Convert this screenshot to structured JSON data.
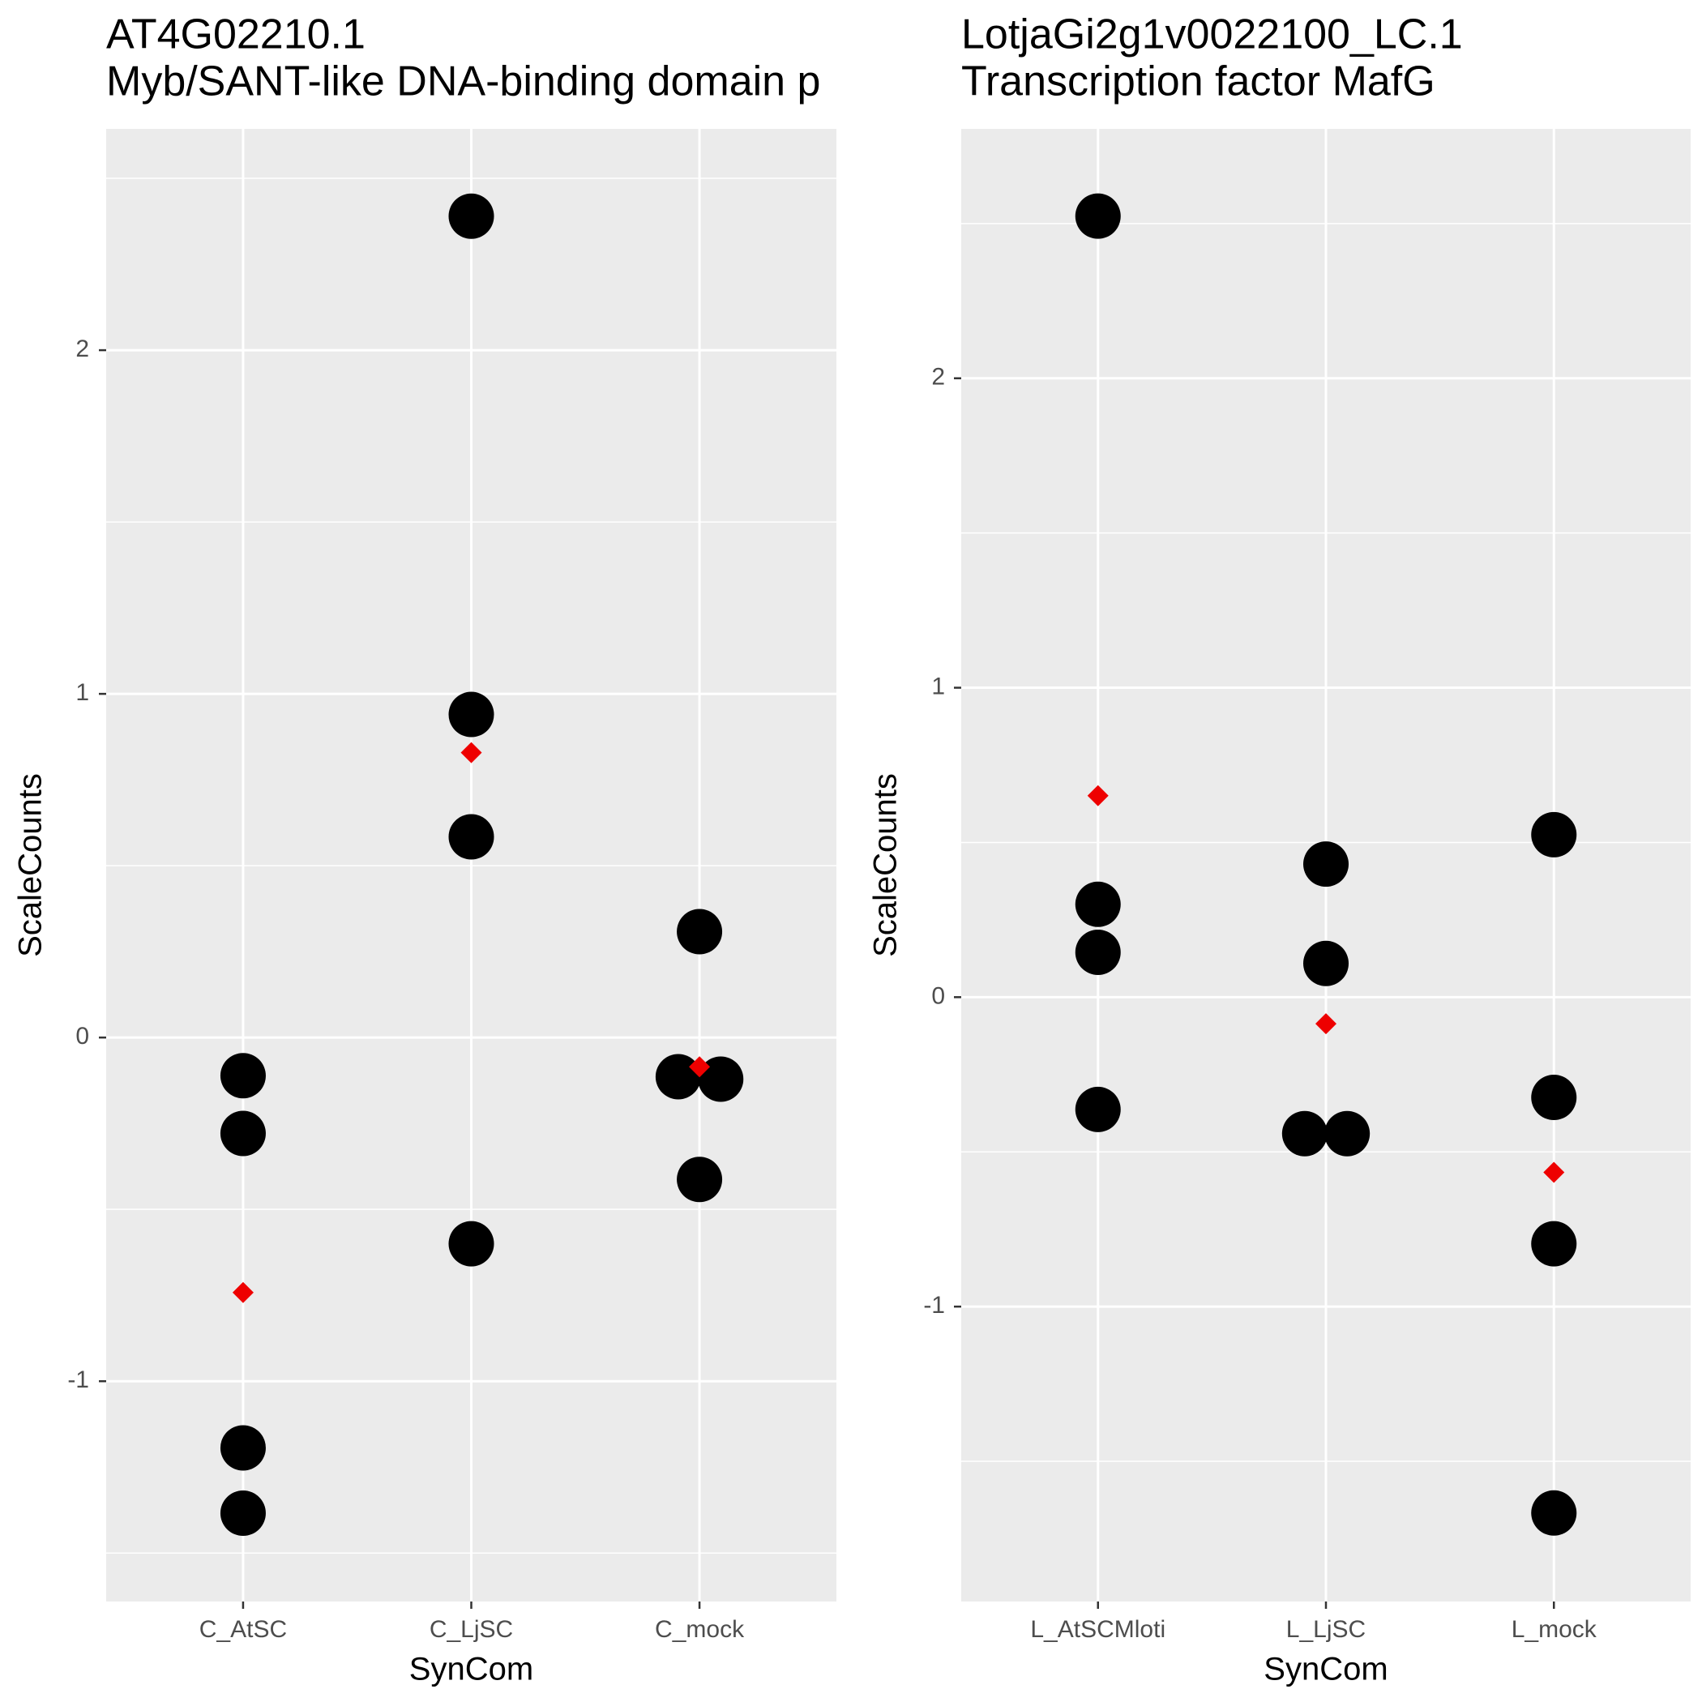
{
  "chart_data": [
    {
      "type": "dot",
      "title": "AT4G02210.1",
      "subtitle": "Myb/SANT-like DNA-binding domain p",
      "x_label": "SynCom",
      "y_label": "ScaleCounts",
      "categories": [
        "C_AtSC",
        "C_LjSC",
        "C_mock"
      ],
      "values": [
        [
          -0.111,
          -0.279,
          -1.194,
          -1.384
        ],
        [
          2.39,
          0.94,
          0.584,
          -0.6
        ],
        [
          0.308,
          -0.114,
          -0.121,
          -0.413
        ]
      ],
      "means": [
        -0.742,
        0.829,
        -0.085
      ],
      "color": "#000000",
      "mean_color": "#ee0000",
      "ylim": [
        -1.641,
        2.644
      ],
      "yticks": [
        -1,
        0,
        1,
        2
      ],
      "grid": true
    },
    {
      "type": "dot",
      "title": "LotjaGi2g1v0022100_LC.1",
      "subtitle": "Transcription factor MafG",
      "x_label": "SynCom",
      "y_label": "ScaleCounts",
      "categories": [
        "L_AtSCMloti",
        "L_LjSC",
        "L_mock"
      ],
      "values": [
        [
          2.524,
          0.3,
          0.145,
          -0.363
        ],
        [
          0.43,
          0.109,
          -0.441,
          -0.441
        ],
        [
          0.525,
          -0.324,
          -0.797,
          -1.667
        ]
      ],
      "means": [
        0.651,
        -0.086,
        -0.566
      ],
      "color": "#000000",
      "mean_color": "#ee0000",
      "ylim": [
        -1.953,
        2.806
      ],
      "yticks": [
        -1,
        0,
        1,
        2
      ],
      "grid": true
    }
  ]
}
